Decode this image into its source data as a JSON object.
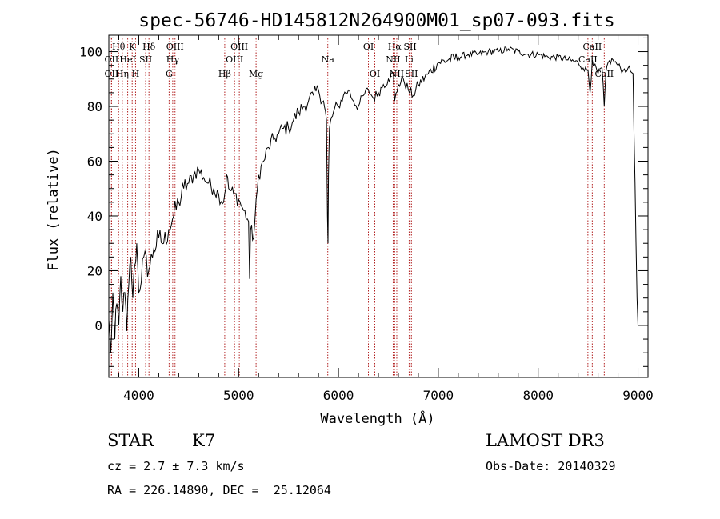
{
  "chart_data": {
    "type": "line",
    "title": "spec-56746-HD145812N264900M01_sp07-093.fits",
    "xlabel": "Wavelength (Å)",
    "ylabel": "Flux (relative)",
    "xlim": [
      3700,
      9100
    ],
    "ylim": [
      -19,
      106
    ],
    "x_ticks": [
      4000,
      5000,
      6000,
      7000,
      8000,
      9000
    ],
    "y_ticks": [
      0,
      20,
      40,
      60,
      80,
      100
    ],
    "grid": false,
    "series": [
      {
        "name": "flux",
        "x": [
          3700,
          3720,
          3740,
          3760,
          3780,
          3800,
          3820,
          3840,
          3860,
          3880,
          3900,
          3920,
          3940,
          3960,
          3980,
          4000,
          4050,
          4100,
          4150,
          4200,
          4250,
          4300,
          4350,
          4400,
          4450,
          4500,
          4550,
          4600,
          4650,
          4700,
          4750,
          4800,
          4850,
          4880,
          4900,
          4950,
          5000,
          5050,
          5100,
          5110,
          5120,
          5150,
          5200,
          5250,
          5300,
          5350,
          5400,
          5450,
          5500,
          5550,
          5600,
          5650,
          5700,
          5750,
          5800,
          5850,
          5880,
          5890,
          5895,
          5900,
          5910,
          5950,
          6000,
          6050,
          6100,
          6150,
          6200,
          6250,
          6300,
          6350,
          6400,
          6450,
          6500,
          6550,
          6563,
          6600,
          6650,
          6700,
          6750,
          6800,
          6900,
          7000,
          7100,
          7200,
          7300,
          7400,
          7500,
          7600,
          7700,
          7800,
          7900,
          8000,
          8100,
          8200,
          8300,
          8400,
          8450,
          8500,
          8520,
          8542,
          8560,
          8600,
          8640,
          8662,
          8680,
          8700,
          8750,
          8800,
          8850,
          8900,
          8950,
          8990,
          9000
        ],
        "y": [
          2,
          -10,
          12,
          -5,
          8,
          0,
          18,
          5,
          12,
          -2,
          15,
          25,
          10,
          22,
          30,
          12,
          25,
          20,
          28,
          32,
          30,
          35,
          40,
          45,
          50,
          52,
          55,
          57,
          54,
          52,
          50,
          48,
          45,
          55,
          50,
          48,
          46,
          42,
          38,
          17,
          35,
          32,
          55,
          60,
          65,
          68,
          70,
          72,
          72,
          75,
          78,
          80,
          82,
          84,
          86,
          82,
          75,
          40,
          30,
          55,
          72,
          78,
          80,
          84,
          86,
          82,
          80,
          84,
          86,
          83,
          85,
          88,
          90,
          92,
          82,
          88,
          90,
          86,
          84,
          88,
          92,
          96,
          97,
          98,
          99,
          99,
          100,
          100,
          101,
          100,
          99,
          99,
          98,
          98,
          97,
          96,
          94,
          93,
          85,
          97,
          95,
          92,
          94,
          80,
          93,
          96,
          97,
          95,
          93,
          94,
          92,
          10,
          0
        ]
      }
    ],
    "line_labels": [
      {
        "name": "Hθ",
        "x": 3798,
        "row": 1
      },
      {
        "name": "OII",
        "x": 3727,
        "row": 2
      },
      {
        "name": "OII",
        "x": 3727,
        "row": 3
      },
      {
        "name": "Hη",
        "x": 3835,
        "row": 3
      },
      {
        "name": "K",
        "x": 3934,
        "row": 1
      },
      {
        "name": "HeI",
        "x": 3889,
        "row": 2
      },
      {
        "name": "H",
        "x": 3968,
        "row": 3
      },
      {
        "name": "Hδ",
        "x": 4102,
        "row": 1
      },
      {
        "name": "SII",
        "x": 4069,
        "row": 2
      },
      {
        "name": "OIII",
        "x": 4363,
        "row": 1
      },
      {
        "name": "Hγ",
        "x": 4340,
        "row": 2
      },
      {
        "name": "G",
        "x": 4304,
        "row": 3
      },
      {
        "name": "OIII",
        "x": 5007,
        "row": 1
      },
      {
        "name": "OIII",
        "x": 4959,
        "row": 2
      },
      {
        "name": "Hβ",
        "x": 4861,
        "row": 3
      },
      {
        "name": "Mg",
        "x": 5175,
        "row": 3
      },
      {
        "name": "Na",
        "x": 5893,
        "row": 2
      },
      {
        "name": "OI",
        "x": 6300,
        "row": 1
      },
      {
        "name": "OI",
        "x": 6364,
        "row": 3
      },
      {
        "name": "Hα",
        "x": 6563,
        "row": 1
      },
      {
        "name": "NII",
        "x": 6548,
        "row": 2
      },
      {
        "name": "NII",
        "x": 6584,
        "row": 3
      },
      {
        "name": "SII",
        "x": 6717,
        "row": 1
      },
      {
        "name": "Li",
        "x": 6708,
        "row": 2
      },
      {
        "name": "SII",
        "x": 6731,
        "row": 3
      },
      {
        "name": "CaII",
        "x": 8542,
        "row": 1
      },
      {
        "name": "CaII",
        "x": 8498,
        "row": 2
      },
      {
        "name": "CaII",
        "x": 8662,
        "row": 3
      }
    ],
    "line_color": "#000000",
    "marker_color": "#b22222"
  },
  "info": {
    "object_class": "STAR",
    "subclass": "K7",
    "cz": "cz = 2.7 ± 7.3 km/s",
    "coords": "RA = 226.14890, DEC =  25.12064",
    "survey": "LAMOST DR3",
    "obs_date": "Obs-Date: 20140329"
  }
}
